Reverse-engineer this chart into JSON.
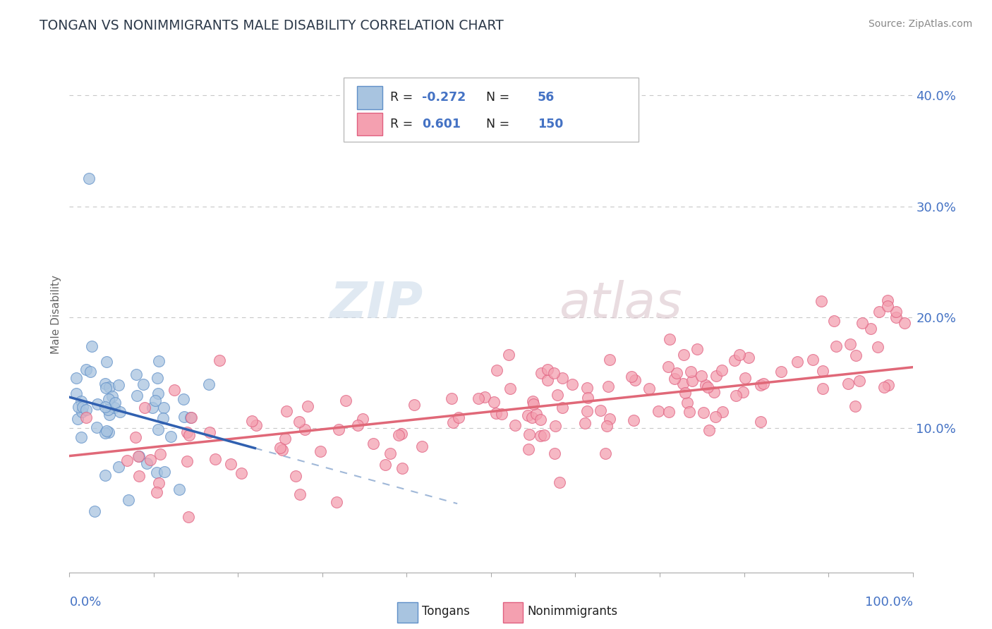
{
  "title": "TONGAN VS NONIMMIGRANTS MALE DISABILITY CORRELATION CHART",
  "source_text": "Source: ZipAtlas.com",
  "ylabel": "Male Disability",
  "ylabel_right_ticks": [
    "10.0%",
    "20.0%",
    "30.0%",
    "40.0%"
  ],
  "ylabel_right_vals": [
    0.1,
    0.2,
    0.3,
    0.4
  ],
  "xlim": [
    0.0,
    1.0
  ],
  "ylim": [
    -0.03,
    0.435
  ],
  "tongans_R": -0.272,
  "tongans_N": 56,
  "nonimm_R": 0.601,
  "nonimm_N": 150,
  "scatter_color_tongans": "#a8c4e0",
  "scatter_edgecolor_tongans": "#6090c8",
  "scatter_color_nonimm": "#f4a0b0",
  "scatter_edgecolor_nonimm": "#e06080",
  "line_color_tongans": "#3060b0",
  "line_color_nonimm": "#e06878",
  "line_color_tongans_ext": "#a0b8d8",
  "legend_sq_blue_face": "#a8c4e0",
  "legend_sq_blue_edge": "#6090c8",
  "legend_sq_pink_face": "#f4a0b0",
  "legend_sq_pink_edge": "#e06080",
  "legend_color_blue": "#4472c4",
  "r_n_color": "#4472c4",
  "title_color": "#2d3a4a",
  "source_color": "#888888",
  "background_color": "#ffffff",
  "grid_color": "#c8c8c8",
  "watermark_zip_color": "#c8d8e8",
  "watermark_atlas_color": "#d8c0c8",
  "tongans_line_x0": 0.0,
  "tongans_line_y0": 0.128,
  "tongans_line_x1": 0.22,
  "tongans_line_y1": 0.082,
  "tongans_line_ext_x1": 0.46,
  "tongans_line_ext_y1": 0.032,
  "nonimm_line_x0": 0.0,
  "nonimm_line_y0": 0.075,
  "nonimm_line_x1": 1.0,
  "nonimm_line_y1": 0.155
}
